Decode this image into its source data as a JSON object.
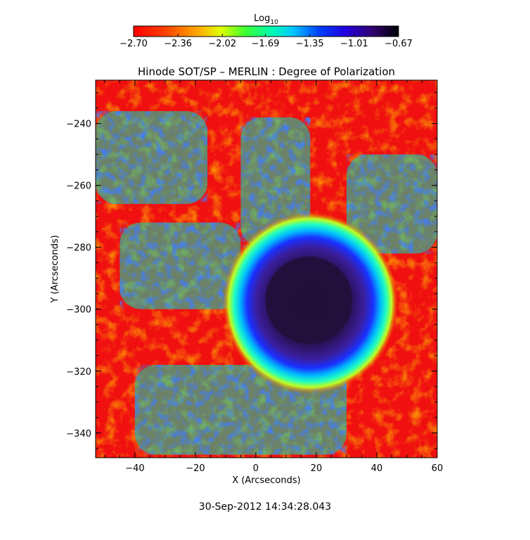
{
  "chart_data": {
    "type": "heatmap",
    "title": "Hinode SOT/SP – MERLIN : Degree of Polarization",
    "xlabel": "X (Arcseconds)",
    "ylabel": "Y (Arcseconds)",
    "xlim": [
      -53,
      60
    ],
    "ylim": [
      -348,
      -226
    ],
    "x_ticks": [
      -40,
      -20,
      0,
      20,
      40,
      60
    ],
    "x_tick_labels": [
      "−40",
      "−20",
      "0",
      "20",
      "40",
      "60"
    ],
    "y_ticks": [
      -240,
      -260,
      -280,
      -300,
      -320,
      -340
    ],
    "y_tick_labels": [
      "−240",
      "−260",
      "−280",
      "−300",
      "−320",
      "−340"
    ],
    "colorbar": {
      "label_base": "Log",
      "label_sub": "10",
      "range": [
        -2.7,
        -0.67
      ],
      "ticks": [
        -2.7,
        -2.36,
        -2.02,
        -1.69,
        -1.35,
        -1.01,
        -0.67
      ],
      "tick_labels": [
        "−2.70",
        "−2.36",
        "−2.02",
        "−1.69",
        "−1.35",
        "−1.01",
        "−0.67"
      ],
      "colormap": "rainbow (red → yellow → green → cyan → blue → black)"
    },
    "features": [
      {
        "name": "sunspot umbra",
        "center_x": 18,
        "center_y": -298,
        "radius": 20,
        "value": -0.8
      },
      {
        "name": "network (upper left)",
        "center_x": -32,
        "center_y": -250,
        "value": -1.4
      },
      {
        "name": "network (left)",
        "center_x": -25,
        "center_y": -285,
        "value": -1.5
      }
    ],
    "background_value": -2.6
  },
  "timestamp": "30-Sep-2012 14:34:28.043"
}
